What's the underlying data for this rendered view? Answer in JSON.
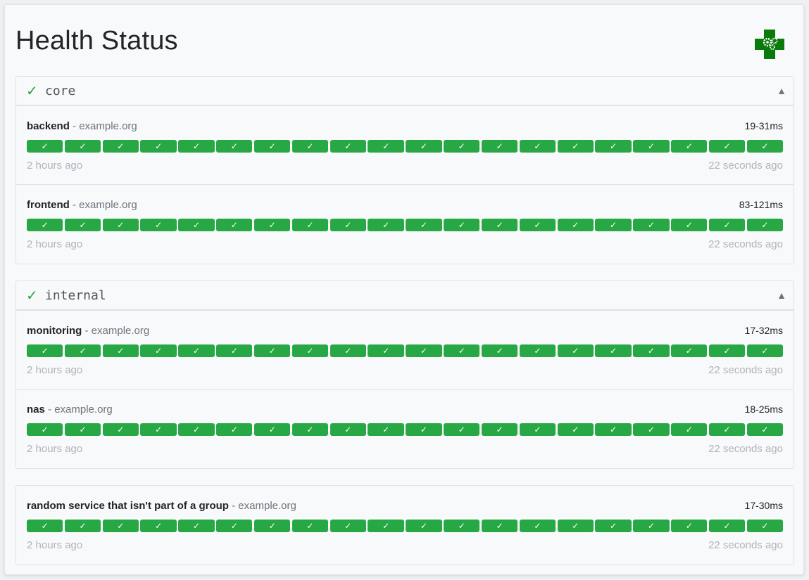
{
  "title": "Health Status",
  "logo": {
    "icon": "health-cross-gears-icon",
    "color": "#0a7a0a"
  },
  "colors": {
    "success": "#28a745",
    "muted": "#adb5bd"
  },
  "result_icon": "✓",
  "groups": [
    {
      "name": "core",
      "status_icon": "✓",
      "toggle_icon": "▲",
      "services": [
        {
          "name": "backend",
          "hostname": "example.org",
          "response": "19-31ms",
          "oldest": "2 hours ago",
          "newest": "22 seconds ago",
          "results": 20
        },
        {
          "name": "frontend",
          "hostname": "example.org",
          "response": "83-121ms",
          "oldest": "2 hours ago",
          "newest": "22 seconds ago",
          "results": 20
        }
      ]
    },
    {
      "name": "internal",
      "status_icon": "✓",
      "toggle_icon": "▲",
      "services": [
        {
          "name": "monitoring",
          "hostname": "example.org",
          "response": "17-32ms",
          "oldest": "2 hours ago",
          "newest": "22 seconds ago",
          "results": 20
        },
        {
          "name": "nas",
          "hostname": "example.org",
          "response": "18-25ms",
          "oldest": "2 hours ago",
          "newest": "22 seconds ago",
          "results": 20
        }
      ]
    },
    {
      "name": "",
      "services": [
        {
          "name": "random service that isn't part of a group",
          "hostname": "example.org",
          "response": "17-30ms",
          "oldest": "2 hours ago",
          "newest": "22 seconds ago",
          "results": 20
        }
      ]
    }
  ]
}
